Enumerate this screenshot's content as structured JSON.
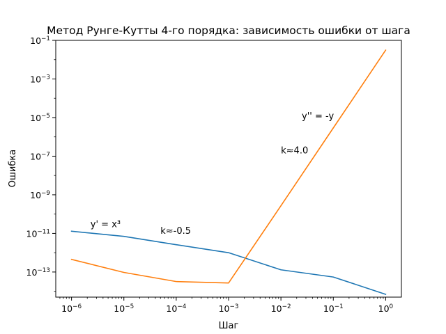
{
  "chart_data": {
    "type": "line",
    "title": "Метод Рунге-Кутты 4-го порядка: зависимость ошибки от шага",
    "xlabel": "Шаг",
    "ylabel": "Ошибка",
    "xscale": "log",
    "yscale": "log",
    "xlim": [
      5e-07,
      2.0
    ],
    "ylim": [
      5e-15,
      0.1
    ],
    "grid": false,
    "legend": "none",
    "x_ticks": [
      {
        "base": "10",
        "exp": "−6",
        "value": 1e-06
      },
      {
        "base": "10",
        "exp": "−5",
        "value": 1e-05
      },
      {
        "base": "10",
        "exp": "−4",
        "value": 0.0001
      },
      {
        "base": "10",
        "exp": "−3",
        "value": 0.001
      },
      {
        "base": "10",
        "exp": "−2",
        "value": 0.01
      },
      {
        "base": "10",
        "exp": "−1",
        "value": 0.1
      },
      {
        "base": "10",
        "exp": "0",
        "value": 1.0
      }
    ],
    "y_ticks": [
      {
        "base": "10",
        "exp": "−13",
        "value": 1e-13
      },
      {
        "base": "10",
        "exp": "−11",
        "value": 1e-11
      },
      {
        "base": "10",
        "exp": "−9",
        "value": 1e-09
      },
      {
        "base": "10",
        "exp": "−7",
        "value": 1e-07
      },
      {
        "base": "10",
        "exp": "−5",
        "value": 1e-05
      },
      {
        "base": "10",
        "exp": "−3",
        "value": 0.001
      },
      {
        "base": "10",
        "exp": "−1",
        "value": 0.1
      }
    ],
    "series": [
      {
        "color": "#1f77b4",
        "points": [
          {
            "x": 1e-06,
            "y": 1.3e-11
          },
          {
            "x": 1e-05,
            "y": 7e-12
          },
          {
            "x": 0.0001,
            "y": 2.6e-12
          },
          {
            "x": 0.001,
            "y": 1e-12
          },
          {
            "x": 0.01,
            "y": 1.3e-13
          },
          {
            "x": 0.1,
            "y": 5.5e-14
          },
          {
            "x": 1.0,
            "y": 7e-15
          }
        ]
      },
      {
        "color": "#ff7f0e",
        "points": [
          {
            "x": 1e-06,
            "y": 4.5e-13
          },
          {
            "x": 1e-05,
            "y": 9.5e-14
          },
          {
            "x": 0.0001,
            "y": 3.2e-14
          },
          {
            "x": 0.001,
            "y": 2.7e-14
          },
          {
            "x": 0.01,
            "y": 2.7e-10
          },
          {
            "x": 0.1,
            "y": 2.9e-06
          },
          {
            "x": 1.0,
            "y": 0.031
          }
        ]
      }
    ],
    "annotations": [
      {
        "text": "y' = x³",
        "x": 2.3e-06,
        "y": 2.1e-11
      },
      {
        "text": "k≈-0.5",
        "x": 5e-05,
        "y": 9.5e-12
      },
      {
        "text": "y'' = -y",
        "x": 0.025,
        "y": 8.5e-06
      },
      {
        "text": "k≈4.0",
        "x": 0.01,
        "y": 1.4e-07
      }
    ]
  }
}
